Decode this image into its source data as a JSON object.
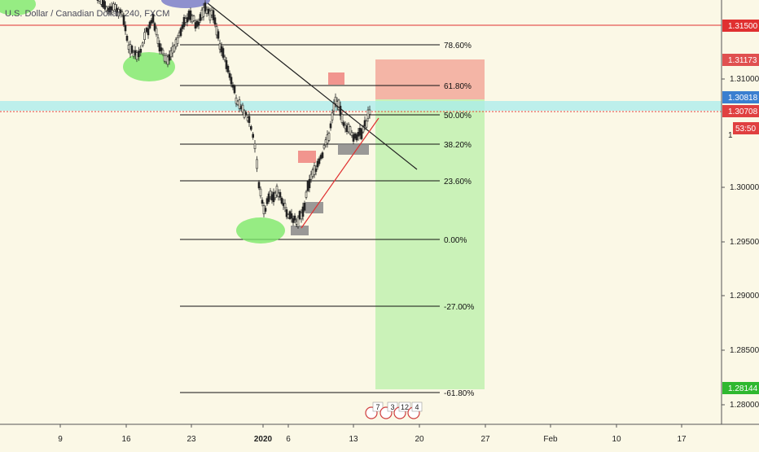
{
  "title_prefix": "U.S. Dollar / Canadian Dollar, ",
  "title_interval": "240, FXCM",
  "chart_data": {
    "type": "candlestick",
    "title": "U.S. Dollar / Canadian Dollar, 240, FXCM",
    "y_axis": {
      "side": "right",
      "ticks": [
        "1.31000",
        "1.30000",
        "1.29500",
        "1.29000",
        "1.28500",
        "1.28000"
      ],
      "tick_values": [
        1.31,
        1.3,
        1.295,
        1.29,
        1.285,
        1.28
      ]
    },
    "x_axis": {
      "ticks": [
        "9",
        "16",
        "23",
        "2020",
        "6",
        "13",
        "20",
        "27",
        "Feb",
        "10",
        "17"
      ],
      "units": "date (Dec 2019 – Feb 2020)"
    },
    "price_labels": [
      {
        "text": "1.31500",
        "value": 1.315,
        "color": "#e03030",
        "kind": "horizontal-line"
      },
      {
        "text": "1.31173",
        "value": 1.31173,
        "color": "#e05050",
        "kind": "stop-loss"
      },
      {
        "text": "1.30818",
        "value": 1.30818,
        "color": "#3a7fd0",
        "kind": "target-entry"
      },
      {
        "text": "1.30708",
        "value": 1.30708,
        "color": "#e04040",
        "kind": "last-price"
      },
      {
        "text": "53:50",
        "color": "#e04040",
        "kind": "countdown"
      },
      {
        "text": "1.28144",
        "value": 1.28144,
        "color": "#2fb82f",
        "kind": "take-profit"
      }
    ],
    "fibonacci_levels": [
      {
        "label": "78.60%",
        "value": 1.3135
      },
      {
        "label": "61.80%",
        "value": 1.309
      },
      {
        "label": "50.00%",
        "value": 1.3058
      },
      {
        "label": "38.20%",
        "value": 1.3026
      },
      {
        "label": "23.60%",
        "value": 1.2987
      },
      {
        "label": "0.00%",
        "value": 1.295
      },
      {
        "label": "-27.00%",
        "value": 1.2877
      },
      {
        "label": "-61.80%",
        "value": 1.2783
      }
    ],
    "position": {
      "entry": 1.30818,
      "stop": 1.31173,
      "target": 1.28144
    },
    "event_badges": [
      "7",
      "3",
      "12",
      "4"
    ],
    "grid": false,
    "colors": {
      "background": "#fbf8e6",
      "up": "#222222",
      "down": "#222222",
      "fib_line": "#111111",
      "trend_line": "#222222",
      "support_line": "#e03030",
      "stop_zone": "#f2a99a",
      "target_zone": "#b9f0a8",
      "entry_band": "#a8ecec"
    }
  }
}
